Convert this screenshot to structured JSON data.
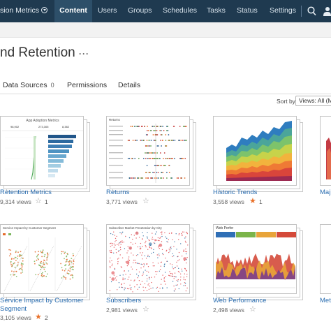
{
  "nav": {
    "site_name": "sion Metrics",
    "tabs": [
      "Content",
      "Users",
      "Groups",
      "Schedules",
      "Tasks",
      "Status",
      "Settings"
    ],
    "active_tab": "Content"
  },
  "workbook": {
    "title": "nd Retention",
    "more_label": "···"
  },
  "subtabs": {
    "data_sources": "Data Sources",
    "data_sources_count": "0",
    "permissions": "Permissions",
    "details": "Details"
  },
  "sort": {
    "label": "Sort by",
    "value": "Views: All (Mo"
  },
  "views": [
    {
      "name": "Retention Metrics",
      "views": "9,314 views",
      "favorites": "1",
      "favorited": false
    },
    {
      "name": "Returns",
      "views": "3,771 views",
      "favorites": "",
      "favorited": false
    },
    {
      "name": "Historic Trends",
      "views": "3,558 views",
      "favorites": "1",
      "favorited": true
    },
    {
      "name": "Maj",
      "views": "",
      "favorites": "",
      "favorited": false
    },
    {
      "name": "Service Impact by Customer Segment",
      "name_line1": "Service Impact by Customer",
      "name_line2": "Segment",
      "views": "3,105 views",
      "favorites": "2",
      "favorited": true
    },
    {
      "name": "Subscribers",
      "views": "2,981 views",
      "favorites": "",
      "favorited": false
    },
    {
      "name": "Web Performance",
      "views": "2,498 views",
      "favorites": "",
      "favorited": false
    },
    {
      "name": "Met",
      "views": "",
      "favorites": "",
      "favorited": false
    }
  ],
  "thumbs": {
    "app_adoption_title": "App Adoption Metrics",
    "app_adoption_stats": [
      "98,902",
      "273,305",
      "8,382"
    ],
    "returns_title": "Returns",
    "subscribers_title": "Subscriber Market Penetration by City",
    "impact_title": "Service Impact by Customer Segment",
    "web_title": "Web Perfor"
  },
  "colors": {
    "nav_bg": "#1f3a50",
    "link": "#2a6db0",
    "star_on": "#e9712a"
  }
}
